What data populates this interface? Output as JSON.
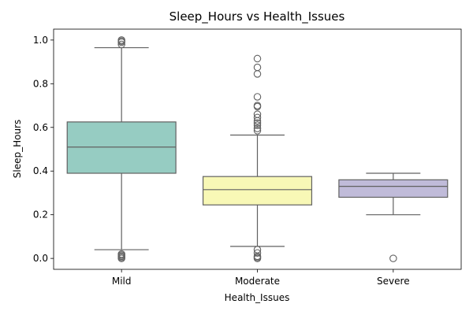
{
  "chart_data": {
    "type": "box",
    "title": "Sleep_Hours vs Health_Issues",
    "xlabel": "Health_Issues",
    "ylabel": "Sleep_Hours",
    "ylim": [
      -0.05,
      1.05
    ],
    "yticks": [
      "0.0",
      "0.2",
      "0.4",
      "0.6",
      "0.8",
      "1.0"
    ],
    "grid": false,
    "categories": [
      "Mild",
      "Moderate",
      "Severe"
    ],
    "boxes": [
      {
        "category": "Mild",
        "color": "#96CCC2",
        "whisker_low": 0.04,
        "q1": 0.39,
        "median": 0.51,
        "q3": 0.625,
        "whisker_high": 0.965,
        "outliers": [
          0.0,
          0.005,
          0.01,
          0.015,
          0.02,
          0.98,
          0.99,
          0.995,
          1.0
        ]
      },
      {
        "category": "Moderate",
        "color": "#F8F8B6",
        "whisker_low": 0.055,
        "q1": 0.245,
        "median": 0.315,
        "q3": 0.375,
        "whisker_high": 0.565,
        "outliers": [
          0.0,
          0.005,
          0.01,
          0.025,
          0.04,
          0.585,
          0.595,
          0.61,
          0.62,
          0.63,
          0.645,
          0.66,
          0.695,
          0.7,
          0.74,
          0.845,
          0.875,
          0.915
        ]
      },
      {
        "category": "Severe",
        "color": "#C0BBD9",
        "whisker_low": 0.2,
        "q1": 0.28,
        "median": 0.33,
        "q3": 0.36,
        "whisker_high": 0.39,
        "outliers": [
          0.0
        ]
      }
    ]
  }
}
